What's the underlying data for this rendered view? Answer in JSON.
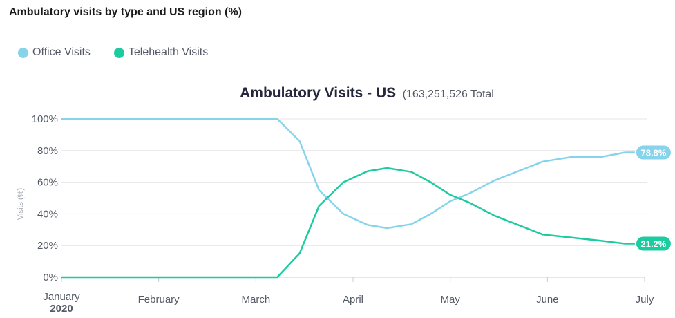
{
  "header": {
    "title": "Ambulatory visits by type and US region (%)"
  },
  "legend": [
    {
      "label": "Office Visits",
      "color": "#86d4ec"
    },
    {
      "label": "Telehealth Visits",
      "color": "#1ccba0"
    }
  ],
  "chart_data": {
    "type": "line",
    "title": "Ambulatory Visits - US",
    "subtitle": "(163,251,526 Total",
    "xlabel": "",
    "ylabel": "Visits (%)",
    "ylim": [
      0,
      100
    ],
    "yticks": [
      "0%",
      "20%",
      "40%",
      "60%",
      "80%",
      "100%"
    ],
    "ytick_values": [
      0,
      20,
      40,
      60,
      80,
      100
    ],
    "xticks": [
      "January",
      "February",
      "March",
      "April",
      "May",
      "June",
      "July"
    ],
    "x_year_label": "2020",
    "xlim": [
      0,
      6
    ],
    "grid": true,
    "series": [
      {
        "name": "Office Visits",
        "color": "#86d4ec",
        "end_label": "78.8%",
        "x": [
          0,
          2.22,
          2.45,
          2.65,
          2.9,
          3.15,
          3.35,
          3.6,
          3.8,
          4.0,
          4.2,
          4.45,
          4.7,
          4.95,
          5.25,
          5.55,
          5.8,
          5.9
        ],
        "y": [
          100,
          100,
          86,
          55,
          40,
          33,
          31,
          33.5,
          40,
          48,
          53,
          61,
          67,
          73,
          76,
          76,
          78.8,
          78.8
        ]
      },
      {
        "name": "Telehealth Visits",
        "color": "#1ccba0",
        "end_label": "21.2%",
        "x": [
          0,
          2.22,
          2.45,
          2.65,
          2.9,
          3.15,
          3.35,
          3.6,
          3.8,
          4.0,
          4.2,
          4.45,
          4.7,
          4.95,
          5.25,
          5.55,
          5.8,
          5.9
        ],
        "y": [
          0,
          0,
          15,
          45,
          60,
          67,
          69,
          66.5,
          60,
          52,
          47,
          39,
          33,
          27,
          25,
          23,
          21.2,
          21.2
        ]
      }
    ]
  }
}
